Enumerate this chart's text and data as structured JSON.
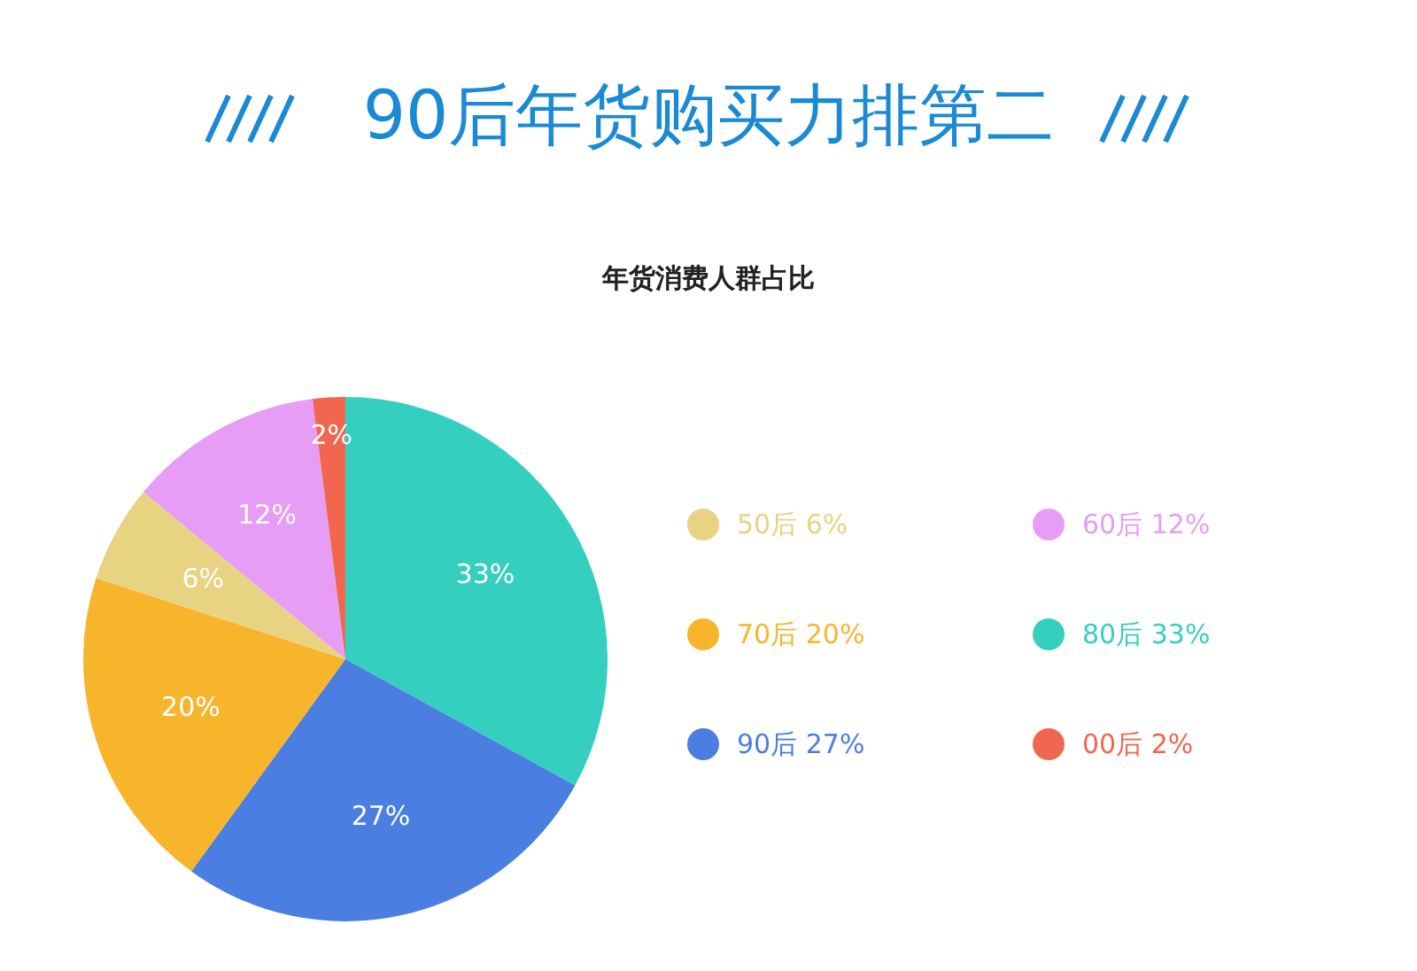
{
  "chart_data": {
    "type": "pie",
    "title": "90后年货购买力排第二",
    "subtitle": "年货消费人群占比",
    "categories": [
      "80后",
      "90后",
      "70后",
      "50后",
      "60后",
      "00后"
    ],
    "values": [
      33,
      27,
      20,
      6,
      12,
      2
    ],
    "value_labels": [
      "33%",
      "27%",
      "20%",
      "6%",
      "12%",
      "2%"
    ],
    "colors": [
      "#35cfc0",
      "#4a7ee0",
      "#f7b52c",
      "#e8d383",
      "#e79cf5",
      "#f0664f"
    ],
    "data_labels": true,
    "legend": "right"
  }
}
